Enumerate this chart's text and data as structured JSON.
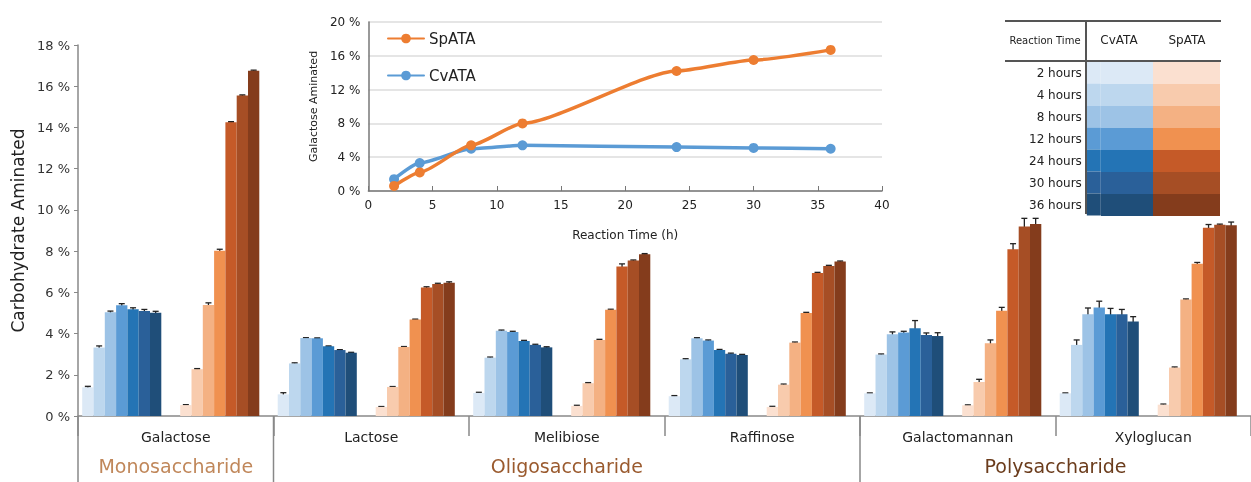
{
  "chart_data": [
    {
      "type": "bar",
      "ylabel": "Carbohydrate Aminated",
      "legend_title": "Reaction Time",
      "legend": "top right",
      "categories": [
        "Galactose",
        "Lactose",
        "Melibiose",
        "Raffinose",
        "Galactomannan",
        "Xyloglucan"
      ],
      "ylim": [
        0,
        18
      ],
      "yticks": [
        {
          "value": 0,
          "label": "0 %"
        },
        {
          "value": 2,
          "label": "2 %"
        },
        {
          "value": 4,
          "label": "4 %"
        },
        {
          "value": 6,
          "label": "6 %"
        },
        {
          "value": 8,
          "label": "8 %"
        },
        {
          "value": 10,
          "label": "10 %"
        },
        {
          "value": 12,
          "label": "12 %"
        },
        {
          "value": 14,
          "label": "14 %"
        },
        {
          "value": 16,
          "label": "16 %"
        },
        {
          "value": 18,
          "label": "18 %"
        }
      ],
      "annotations": [
        "CvATA",
        "SpATA",
        "Monosaccharide",
        "Oligosaccharide",
        "Polysaccharide"
      ],
      "series": [
        {
          "name": "2 hours",
          "color": "#dce9f6",
          "values": [
            1.39,
            1.05,
            1.12,
            0.96,
            1.1,
            1.1
          ],
          "errors": [
            0.05,
            0.08,
            0.03,
            0.03,
            0.02,
            0.02
          ]
        },
        {
          "name": "4 hours",
          "color": "#bdd7ee",
          "values": [
            3.32,
            2.55,
            2.83,
            2.75,
            2.98,
            3.45
          ],
          "errors": [
            0.08,
            0.03,
            0.03,
            0.03,
            0.03,
            0.24
          ]
        },
        {
          "name": "8 hours",
          "color": "#9dc3e6",
          "values": [
            5.03,
            3.78,
            4.14,
            3.77,
            3.97,
            4.94
          ],
          "errors": [
            0.06,
            0.02,
            0.03,
            0.03,
            0.11,
            0.3
          ]
        },
        {
          "name": "12 hours",
          "color": "#5b9bd5",
          "values": [
            5.37,
            3.77,
            4.08,
            3.66,
            4.05,
            5.26
          ],
          "errors": [
            0.08,
            0.02,
            0.03,
            0.03,
            0.06,
            0.31
          ]
        },
        {
          "name": "24 hours",
          "color": "#2474b5",
          "values": [
            5.18,
            3.38,
            3.64,
            3.2,
            4.26,
            4.94
          ],
          "errors": [
            0.07,
            0.02,
            0.03,
            0.03,
            0.37,
            0.28
          ]
        },
        {
          "name": "30 hours",
          "color": "#2a6099",
          "values": [
            5.1,
            3.2,
            3.45,
            3.02,
            3.93,
            4.94
          ],
          "errors": [
            0.07,
            0.02,
            0.03,
            0.03,
            0.1,
            0.23
          ]
        },
        {
          "name": "36 hours",
          "color": "#1f4e79",
          "values": [
            5.01,
            3.07,
            3.33,
            2.96,
            3.88,
            4.58
          ],
          "errors": [
            0.07,
            0.02,
            0.03,
            0.03,
            0.16,
            0.24
          ]
        },
        {
          "color": "#fbe0d0",
          "values": [
            0.53,
            0.44,
            0.49,
            0.44,
            0.52,
            0.55
          ],
          "errors": [
            0.02,
            0.02,
            0.03,
            0.03,
            0.02,
            0.03
          ]
        },
        {
          "color": "#f8cbad",
          "values": [
            2.27,
            1.41,
            1.59,
            1.52,
            1.65,
            2.35
          ],
          "errors": [
            0.03,
            0.02,
            0.03,
            0.03,
            0.13,
            0.03
          ]
        },
        {
          "color": "#f4b183",
          "values": [
            5.39,
            3.35,
            3.69,
            3.56,
            3.53,
            5.65
          ],
          "errors": [
            0.1,
            0.02,
            0.03,
            0.03,
            0.16,
            0.03
          ]
        },
        {
          "color": "#f09150",
          "values": [
            8.02,
            4.68,
            5.15,
            5.0,
            5.11,
            7.39
          ],
          "errors": [
            0.07,
            0.02,
            0.03,
            0.03,
            0.16,
            0.06
          ]
        },
        {
          "color": "#c55a28",
          "values": [
            14.25,
            6.23,
            7.25,
            6.94,
            8.09,
            9.13
          ],
          "errors": [
            0.03,
            0.04,
            0.13,
            0.03,
            0.27,
            0.16
          ]
        },
        {
          "color": "#a64e25",
          "values": [
            15.55,
            6.41,
            7.54,
            7.28,
            9.19,
            9.28
          ],
          "errors": [
            0.03,
            0.03,
            0.03,
            0.03,
            0.4,
            0.03
          ]
        },
        {
          "color": "#843c1c",
          "values": [
            16.75,
            6.47,
            7.85,
            7.49,
            9.32,
            9.25
          ],
          "errors": [
            0.03,
            0.04,
            0.03,
            0.03,
            0.27,
            0.16
          ]
        }
      ]
    },
    {
      "type": "line",
      "xlabel": "Reaction Time (h)",
      "ylabel": "Galactose Aminated",
      "legend": "top left",
      "grid": "y",
      "marker": "circle",
      "x": [
        2,
        4,
        8,
        12,
        24,
        30,
        36
      ],
      "xlim": [
        0,
        40
      ],
      "xticks": [
        0,
        5,
        10,
        15,
        20,
        25,
        30,
        35,
        40
      ],
      "ylim": [
        0,
        20
      ],
      "yticks": [
        {
          "value": 0,
          "label": "0 %"
        },
        {
          "value": 4,
          "label": "4 %"
        },
        {
          "value": 8,
          "label": "8 %"
        },
        {
          "value": 12,
          "label": "12 %"
        },
        {
          "value": 16,
          "label": "16 %"
        },
        {
          "value": 20,
          "label": "20 %"
        }
      ],
      "series": [
        {
          "name": "SpATA",
          "color": "#ed7d31",
          "values": [
            0.6,
            2.2,
            5.4,
            8.0,
            14.2,
            15.5,
            16.7
          ]
        },
        {
          "name": "CvATA",
          "color": "#5b9bd5",
          "values": [
            1.4,
            3.3,
            5.0,
            5.4,
            5.2,
            5.1,
            5.0
          ]
        }
      ]
    }
  ]
}
